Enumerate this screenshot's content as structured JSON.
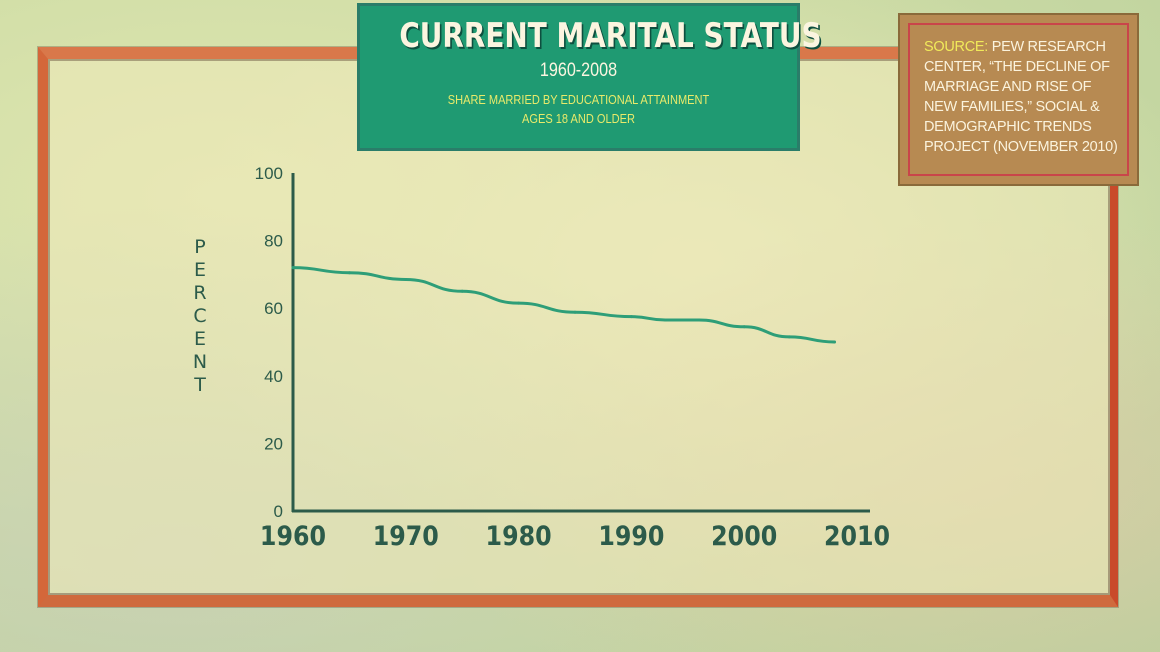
{
  "header": {
    "title": "CURRENT MARITAL STATUS",
    "years": "1960-2008",
    "subtitle_line1": "SHARE MARRIED BY EDUCATIONAL ATTAINMENT",
    "subtitle_line2": "AGES 18 AND OLDER"
  },
  "source": {
    "label": "SOURCE:",
    "text": "PEW RESEARCH CENTER, “THE DECLINE OF MARRIAGE AND RISE OF NEW FAMILIES,” SOCIAL & DEMOGRAPHIC TRENDS PROJECT (NOVEMBER 2010)"
  },
  "colors": {
    "line": "#2e9e78",
    "axis": "#2c5b4a",
    "title_bg": "#1f9a72",
    "source_bg": "#b78a52"
  },
  "chart_data": {
    "type": "line",
    "title": "CURRENT MARITAL STATUS",
    "xlabel": "",
    "ylabel": "PERCENT",
    "xlim": [
      1960,
      2010
    ],
    "ylim": [
      0,
      100
    ],
    "x_ticks": [
      1960,
      1970,
      1980,
      1990,
      2000,
      2010
    ],
    "y_ticks": [
      0,
      20,
      40,
      60,
      80,
      100
    ],
    "grid": false,
    "legend": "none",
    "series": [
      {
        "x": [
          1960,
          1965,
          1970,
          1975,
          1980,
          1985,
          1990,
          1993,
          1996,
          2000,
          2004,
          2008
        ],
        "values": [
          72,
          70.5,
          68.5,
          65,
          61.5,
          58.8,
          57.5,
          56.5,
          56.5,
          54.5,
          51.5,
          50
        ]
      }
    ]
  }
}
